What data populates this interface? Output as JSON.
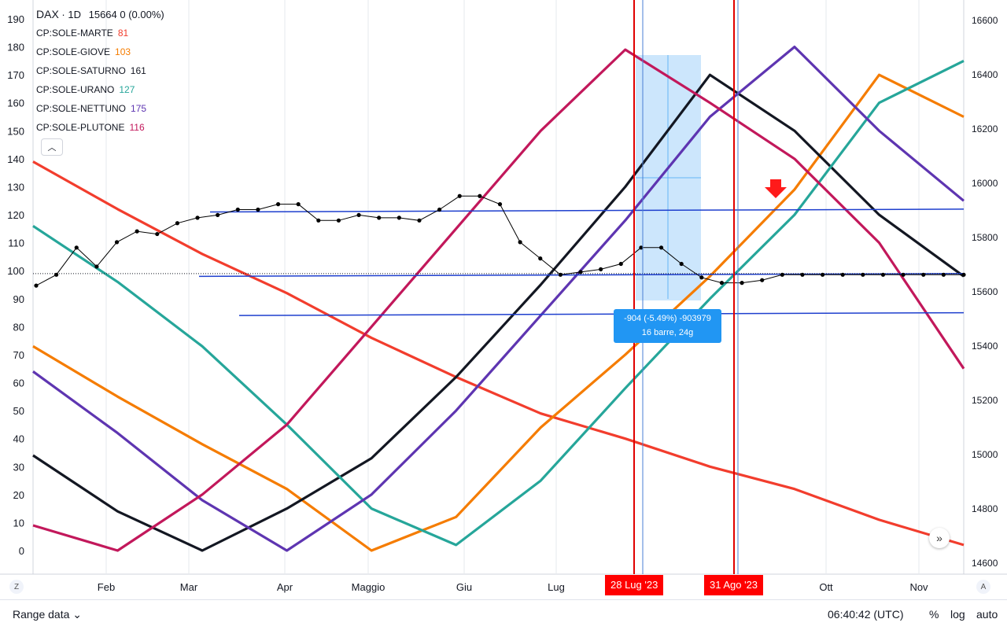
{
  "legend": {
    "symbol": "DAX",
    "interval": "1D",
    "quote": "15664",
    "change": "0 (0.00%)",
    "indicators": [
      {
        "name": "CP:SOLE-MARTE",
        "value": "81",
        "color": "#f23d2d"
      },
      {
        "name": "CP:SOLE-GIOVE",
        "value": "103",
        "color": "#f57c00"
      },
      {
        "name": "CP:SOLE-SATURNO",
        "value": "161",
        "color": "#131722"
      },
      {
        "name": "CP:SOLE-URANO",
        "value": "127",
        "color": "#26a69a"
      },
      {
        "name": "CP:SOLE-NETTUNO",
        "value": "175",
        "color": "#5e35b1"
      },
      {
        "name": "CP:SOLE-PLUTONE",
        "value": "116",
        "color": "#c2185b"
      }
    ],
    "collapse_icon": "chevron-up-icon"
  },
  "chart_data": {
    "type": "line",
    "x_axis": {
      "ticks": [
        "Feb",
        "Mar",
        "Apr",
        "Maggio",
        "Giu",
        "Lug",
        "Ott",
        "Nov"
      ]
    },
    "y_left": {
      "min": 0,
      "max": 190,
      "ticks": [
        "190",
        "180",
        "170",
        "160",
        "150",
        "140",
        "130",
        "120",
        "110",
        "100",
        "90",
        "80",
        "70",
        "60",
        "50",
        "40",
        "30",
        "20",
        "10",
        "0"
      ]
    },
    "y_right": {
      "min": 14600,
      "max": 16600,
      "ticks": [
        "16600",
        "16400",
        "16200",
        "16000",
        "15800",
        "15600",
        "15400",
        "15200",
        "15000",
        "14800",
        "14600"
      ]
    },
    "price": {
      "name": "DAX",
      "values": [
        15620,
        15660,
        15760,
        15690,
        15780,
        15820,
        15810,
        15850,
        15870,
        15880,
        15900,
        15900,
        15920,
        15920,
        15860,
        15860,
        15880,
        15870,
        15870,
        15860,
        15900,
        15950,
        15950,
        15920,
        15780,
        15720,
        15660,
        15670,
        15680,
        15700,
        15760,
        15760,
        15700,
        15650,
        15630,
        15630,
        15640,
        15660,
        15660,
        15660,
        15660,
        15660,
        15660,
        15660,
        15660,
        15660,
        15660
      ]
    },
    "series": [
      {
        "name": "CP:SOLE-MARTE",
        "color": "#f23d2d",
        "values": [
          139,
          122,
          106,
          92,
          76,
          62,
          49,
          40,
          30,
          22,
          11,
          2
        ]
      },
      {
        "name": "CP:SOLE-GIOVE",
        "color": "#f57c00",
        "values": [
          73,
          55,
          38,
          22,
          0,
          12,
          44,
          70,
          98,
          129,
          170,
          155
        ]
      },
      {
        "name": "CP:SOLE-SATURNO",
        "color": "#131722",
        "values": [
          34,
          14,
          0,
          15,
          33,
          62,
          95,
          130,
          170,
          150,
          120,
          98
        ]
      },
      {
        "name": "CP:SOLE-URANO",
        "color": "#26a69a",
        "values": [
          116,
          96,
          73,
          45,
          15,
          2,
          25,
          58,
          90,
          120,
          160,
          175
        ]
      },
      {
        "name": "CP:SOLE-NETTUNO",
        "color": "#5e35b1",
        "values": [
          64,
          42,
          18,
          0,
          20,
          50,
          84,
          118,
          155,
          180,
          150,
          125
        ]
      },
      {
        "name": "CP:SOLE-PLUTONE",
        "color": "#c2185b",
        "values": [
          9,
          0,
          20,
          45,
          80,
          115,
          150,
          179,
          160,
          140,
          110,
          65
        ]
      }
    ],
    "markers": {
      "vertical_dates": [
        "28 Lug '23",
        "31 Ago '23"
      ],
      "measure_line_1": "-904 (-5.49%) -903979",
      "measure_line_2": "16 barre, 24g"
    },
    "grid": true
  },
  "bottom": {
    "range_label": "Range data",
    "time": "06:40:42 (UTC)",
    "percent": "%",
    "log": "log",
    "auto": "auto",
    "z_label": "Z",
    "a_label": "A"
  }
}
